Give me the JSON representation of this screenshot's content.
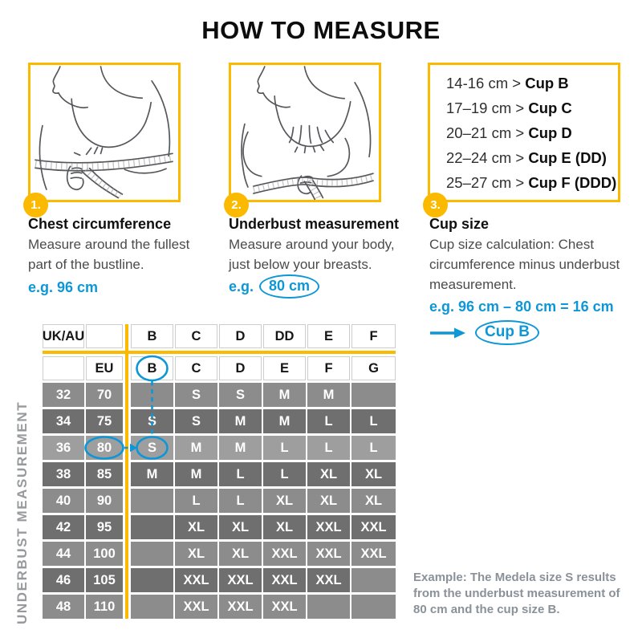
{
  "title": "HOW TO MEASURE",
  "colors": {
    "yellow": "#FBBA00",
    "blue": "#0D97D6",
    "row_dark": "#6F6F6F",
    "row_medium": "#8C8C8C",
    "row_highlight": "#9E9E9E"
  },
  "steps": [
    {
      "number": "1.",
      "heading": "Chest circumference",
      "body": "Measure around the fullest part of the bustline.",
      "example": "e.g. 96 cm"
    },
    {
      "number": "2.",
      "heading": "Underbust measurement",
      "body": "Measure around your body, just below your breasts.",
      "example_label": "e.g.",
      "example_value": "80 cm"
    },
    {
      "number": "3.",
      "heading": "Cup size",
      "body": "Cup size calculation: Chest circumference minus underbust measurement.",
      "example": "e.g. 96 cm – 80 cm = 16 cm",
      "result": "Cup B"
    }
  ],
  "cup_chart": {
    "items": [
      {
        "range": "14-16 cm >",
        "cup": "Cup B"
      },
      {
        "range": "17–19 cm >",
        "cup": "Cup C"
      },
      {
        "range": "20–21 cm >",
        "cup": "Cup D"
      },
      {
        "range": "22–24 cm >",
        "cup": "Cup E (DD)"
      },
      {
        "range": "25–27 cm >",
        "cup": "Cup F (DDD)"
      }
    ]
  },
  "table": {
    "side_label": "UNDERBUST MEASUREMENT",
    "header_row1": [
      "UK/AU",
      "",
      "B",
      "C",
      "D",
      "DD",
      "E",
      "F"
    ],
    "header_row2": [
      "",
      "EU",
      "B",
      "C",
      "D",
      "E",
      "F",
      "G"
    ],
    "rows": [
      {
        "ukau": "32",
        "eu": "70",
        "cells": [
          "",
          "S",
          "S",
          "M",
          "M",
          ""
        ],
        "shade": "medium"
      },
      {
        "ukau": "34",
        "eu": "75",
        "cells": [
          "S",
          "S",
          "M",
          "M",
          "L",
          "L"
        ],
        "shade": "dark"
      },
      {
        "ukau": "36",
        "eu": "80",
        "cells": [
          "S",
          "M",
          "M",
          "L",
          "L",
          "L"
        ],
        "shade": "highlight"
      },
      {
        "ukau": "38",
        "eu": "85",
        "cells": [
          "M",
          "M",
          "L",
          "L",
          "XL",
          "XL"
        ],
        "shade": "dark"
      },
      {
        "ukau": "40",
        "eu": "90",
        "cells": [
          "",
          "L",
          "L",
          "XL",
          "XL",
          "XL"
        ],
        "shade": "medium"
      },
      {
        "ukau": "42",
        "eu": "95",
        "cells": [
          "",
          "XL",
          "XL",
          "XL",
          "XXL",
          "XXL"
        ],
        "shade": "dark"
      },
      {
        "ukau": "44",
        "eu": "100",
        "cells": [
          "",
          "XL",
          "XL",
          "XXL",
          "XXL",
          "XXL"
        ],
        "shade": "medium"
      },
      {
        "ukau": "46",
        "eu": "105",
        "cells": [
          "",
          "XXL",
          "XXL",
          "XXL",
          "XXL",
          null
        ],
        "shade": "dark"
      },
      {
        "ukau": "48",
        "eu": "110",
        "cells": [
          "",
          "XXL",
          "XXL",
          "XXL",
          "",
          ""
        ],
        "shade": "medium"
      }
    ],
    "annotations": {
      "circled_header": "B",
      "circled_eu_value": "80",
      "circled_result_cell": "S"
    }
  },
  "example_note": "Example: The Medela size S results from the underbust measurement of 80 cm and the cup size B."
}
